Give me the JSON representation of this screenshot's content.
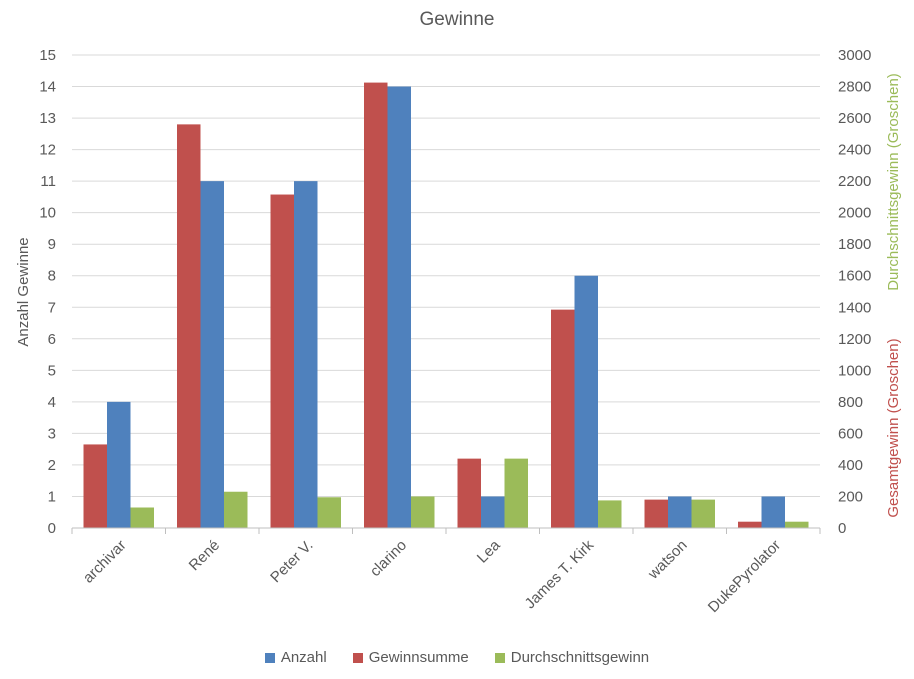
{
  "chart_data": {
    "type": "bar",
    "title": "Gewinne",
    "categories": [
      "archivar",
      "René",
      "Peter V.",
      "clarino",
      "Lea",
      "James T. Kirk",
      "watson",
      "DukePyrolator"
    ],
    "series": [
      {
        "name": "Gewinnsumme",
        "axis": "secondary",
        "color": "#C0504D",
        "values": [
          530,
          2560,
          2115,
          2825,
          440,
          1385,
          180,
          40
        ]
      },
      {
        "name": "Anzahl",
        "axis": "primary",
        "color": "#4F81BD",
        "values": [
          4,
          11,
          11,
          14,
          1,
          8,
          1,
          1
        ]
      },
      {
        "name": "Durchschnittsgewinn",
        "axis": "secondary",
        "color": "#9BBB59",
        "values": [
          130,
          230,
          195,
          200,
          440,
          175,
          180,
          40
        ]
      }
    ],
    "y_left": {
      "label": "Anzahl Gewinne",
      "ylim": [
        0,
        15
      ],
      "ticks": [
        "0",
        "1",
        "2",
        "3",
        "4",
        "5",
        "6",
        "7",
        "8",
        "9",
        "10",
        "11",
        "12",
        "13",
        "14",
        "15"
      ]
    },
    "y_right": {
      "ylim": [
        0,
        3000
      ],
      "ticks": [
        "0",
        "200",
        "400",
        "600",
        "800",
        "1000",
        "1200",
        "1400",
        "1600",
        "1800",
        "2000",
        "2200",
        "2400",
        "2600",
        "2800",
        "3000"
      ],
      "label_gesamt": "Gesamtgewinn (Groschen)",
      "label_durchschnitt": "Durchschnittsgewinn (Groschen)"
    },
    "grid": true,
    "legend_position": "bottom",
    "legend": [
      {
        "name": "Anzahl",
        "color": "#4F81BD"
      },
      {
        "name": "Gewinnsumme",
        "color": "#C0504D"
      },
      {
        "name": "Durchschnittsgewinn",
        "color": "#9BBB59"
      }
    ]
  }
}
